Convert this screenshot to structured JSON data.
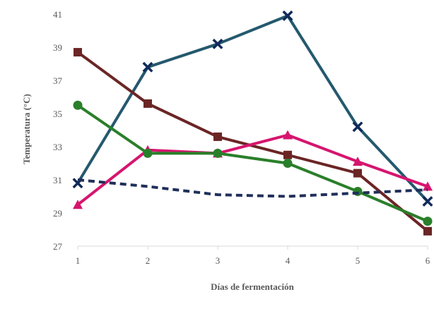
{
  "chart_data": {
    "type": "line",
    "title": "",
    "xlabel": "Días de fermentación",
    "ylabel": "Temperatura (°C)",
    "x": [
      1,
      2,
      3,
      4,
      5,
      6
    ],
    "xlim": [
      1,
      6
    ],
    "ylim": [
      27,
      41
    ],
    "yticks": [
      27,
      29,
      31,
      33,
      35,
      37,
      39,
      41
    ],
    "xticks": [
      1,
      2,
      3,
      4,
      5,
      6
    ],
    "grid": false,
    "legend": "none",
    "series": [
      {
        "color": "#25596E",
        "marker": "x",
        "dash": false,
        "values": [
          30.8,
          37.8,
          39.2,
          40.9,
          34.2,
          29.7
        ]
      },
      {
        "color": "#6B2525",
        "marker": "square",
        "dash": false,
        "values": [
          38.7,
          35.6,
          33.6,
          32.5,
          31.4,
          27.9
        ]
      },
      {
        "color": "#D6156F",
        "marker": "triangle",
        "dash": false,
        "values": [
          29.5,
          32.8,
          32.6,
          33.7,
          32.1,
          30.6
        ]
      },
      {
        "color": "#2A7F2A",
        "marker": "circle",
        "dash": false,
        "values": [
          35.5,
          32.6,
          32.6,
          32.0,
          30.3,
          28.5
        ]
      },
      {
        "color": "#1F2F5A",
        "marker": "none",
        "dash": true,
        "values": [
          31.0,
          30.6,
          30.1,
          30.0,
          30.2,
          30.4
        ]
      }
    ]
  }
}
